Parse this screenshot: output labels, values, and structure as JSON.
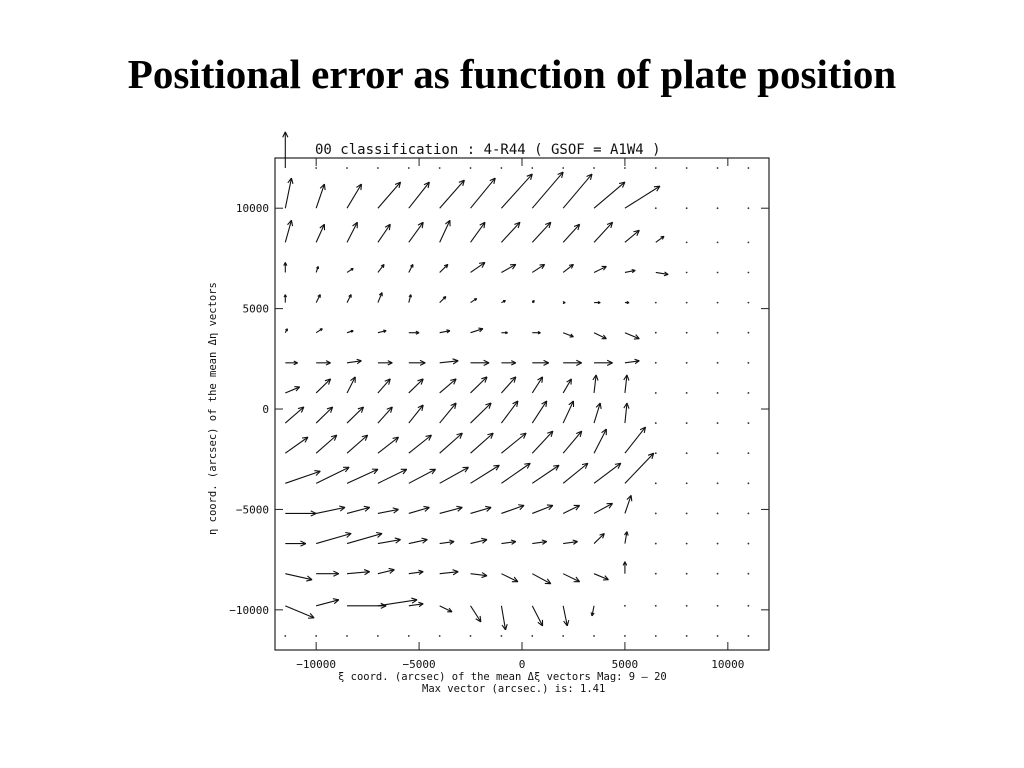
{
  "slide": {
    "title": "Positional error as function of plate position"
  },
  "chart_data": {
    "type": "scatter",
    "subtype": "vector-field",
    "plot_title": "00 classification :   4-R44   ( GSOF = A1W4 )",
    "xlabel": "ξ coord. (arcsec) of the mean Δξ vectors Mag:    9 –   20",
    "xlabel_line2": "Max vector (arcsec.) is:    1.41",
    "ylabel": "η coord. (arcsec) of the mean Δη vectors",
    "xlim": [
      -12000,
      12000
    ],
    "ylim": [
      -12000,
      12500
    ],
    "xticks": [
      -10000,
      -5000,
      0,
      5000,
      10000
    ],
    "xtick_labels": [
      "−10000",
      "−5000",
      "0",
      "5000",
      "10000"
    ],
    "yticks": [
      10000,
      5000,
      0,
      -5000,
      -10000
    ],
    "ytick_labels": [
      "10000",
      "5000",
      "0",
      "−5000",
      "−10000"
    ],
    "grid_x": [
      -11500,
      -10000,
      -8500,
      -7000,
      -5500,
      -4000,
      -2500,
      -1000,
      500,
      2000,
      3500,
      5000,
      6500,
      8000,
      9500,
      11000
    ],
    "grid_y": [
      12000,
      10000,
      8300,
      6800,
      5300,
      3800,
      2300,
      800,
      -700,
      -2200,
      -3700,
      -5200,
      -6700,
      -8200,
      -9800,
      -11300
    ],
    "max_vector_arcsec": 1.41,
    "vectors": [
      {
        "x": -11500,
        "y": 12000,
        "dx": 0,
        "dy": 1800
      },
      {
        "x": -11500,
        "y": 10000,
        "dx": 300,
        "dy": 1500
      },
      {
        "x": -10000,
        "y": 10000,
        "dx": 400,
        "dy": 1200
      },
      {
        "x": -8500,
        "y": 10000,
        "dx": 700,
        "dy": 1200
      },
      {
        "x": -7000,
        "y": 10000,
        "dx": 1100,
        "dy": 1300
      },
      {
        "x": -5500,
        "y": 10000,
        "dx": 1000,
        "dy": 1300
      },
      {
        "x": -4000,
        "y": 10000,
        "dx": 1200,
        "dy": 1400
      },
      {
        "x": -2500,
        "y": 10000,
        "dx": 1200,
        "dy": 1500
      },
      {
        "x": -1000,
        "y": 10000,
        "dx": 1500,
        "dy": 1700
      },
      {
        "x": 500,
        "y": 10000,
        "dx": 1500,
        "dy": 1800
      },
      {
        "x": 2000,
        "y": 10000,
        "dx": 1400,
        "dy": 1700
      },
      {
        "x": 3500,
        "y": 10000,
        "dx": 1500,
        "dy": 1300
      },
      {
        "x": 5000,
        "y": 10000,
        "dx": 1700,
        "dy": 1100
      },
      {
        "x": -11500,
        "y": 8300,
        "dx": 300,
        "dy": 1100
      },
      {
        "x": -10000,
        "y": 8300,
        "dx": 400,
        "dy": 900
      },
      {
        "x": -8500,
        "y": 8300,
        "dx": 500,
        "dy": 1000
      },
      {
        "x": -7000,
        "y": 8300,
        "dx": 600,
        "dy": 900
      },
      {
        "x": -5500,
        "y": 8300,
        "dx": 700,
        "dy": 1000
      },
      {
        "x": -4000,
        "y": 8300,
        "dx": 500,
        "dy": 1100
      },
      {
        "x": -2500,
        "y": 8300,
        "dx": 700,
        "dy": 1000
      },
      {
        "x": -1000,
        "y": 8300,
        "dx": 900,
        "dy": 1000
      },
      {
        "x": 500,
        "y": 8300,
        "dx": 900,
        "dy": 1000
      },
      {
        "x": 2000,
        "y": 8300,
        "dx": 800,
        "dy": 900
      },
      {
        "x": 3500,
        "y": 8300,
        "dx": 900,
        "dy": 1000
      },
      {
        "x": 5000,
        "y": 8300,
        "dx": 700,
        "dy": 600
      },
      {
        "x": 6500,
        "y": 8300,
        "dx": 400,
        "dy": 300
      },
      {
        "x": -11500,
        "y": 6800,
        "dx": 0,
        "dy": 500
      },
      {
        "x": -10000,
        "y": 6800,
        "dx": 100,
        "dy": 300
      },
      {
        "x": -8500,
        "y": 6800,
        "dx": 300,
        "dy": 200
      },
      {
        "x": -7000,
        "y": 6800,
        "dx": 300,
        "dy": 400
      },
      {
        "x": -5500,
        "y": 6800,
        "dx": 200,
        "dy": 400
      },
      {
        "x": -4000,
        "y": 6800,
        "dx": 400,
        "dy": 400
      },
      {
        "x": -2500,
        "y": 6800,
        "dx": 700,
        "dy": 500
      },
      {
        "x": -1000,
        "y": 6800,
        "dx": 700,
        "dy": 400
      },
      {
        "x": 500,
        "y": 6800,
        "dx": 600,
        "dy": 400
      },
      {
        "x": 2000,
        "y": 6800,
        "dx": 500,
        "dy": 400
      },
      {
        "x": 3500,
        "y": 6800,
        "dx": 600,
        "dy": 300
      },
      {
        "x": 5000,
        "y": 6800,
        "dx": 500,
        "dy": 100
      },
      {
        "x": 6500,
        "y": 6800,
        "dx": 600,
        "dy": -100
      },
      {
        "x": -11500,
        "y": 5300,
        "dx": 0,
        "dy": 400
      },
      {
        "x": -10000,
        "y": 5300,
        "dx": 200,
        "dy": 400
      },
      {
        "x": -8500,
        "y": 5300,
        "dx": 200,
        "dy": 400
      },
      {
        "x": -7000,
        "y": 5300,
        "dx": 200,
        "dy": 500
      },
      {
        "x": -5500,
        "y": 5300,
        "dx": 100,
        "dy": 400
      },
      {
        "x": -4000,
        "y": 5300,
        "dx": 300,
        "dy": 300
      },
      {
        "x": -2500,
        "y": 5300,
        "dx": 300,
        "dy": 200
      },
      {
        "x": -1000,
        "y": 5300,
        "dx": 200,
        "dy": 100
      },
      {
        "x": 500,
        "y": 5300,
        "dx": 100,
        "dy": 100
      },
      {
        "x": 2000,
        "y": 5300,
        "dx": 100,
        "dy": 0
      },
      {
        "x": 3500,
        "y": 5300,
        "dx": 300,
        "dy": 0
      },
      {
        "x": 5000,
        "y": 5300,
        "dx": 200,
        "dy": 0
      },
      {
        "x": -11500,
        "y": 3800,
        "dx": 100,
        "dy": 200
      },
      {
        "x": -10000,
        "y": 3800,
        "dx": 300,
        "dy": 200
      },
      {
        "x": -8500,
        "y": 3800,
        "dx": 300,
        "dy": 100
      },
      {
        "x": -7000,
        "y": 3800,
        "dx": 400,
        "dy": 100
      },
      {
        "x": -5500,
        "y": 3800,
        "dx": 500,
        "dy": 0
      },
      {
        "x": -4000,
        "y": 3800,
        "dx": 500,
        "dy": 100
      },
      {
        "x": -2500,
        "y": 3800,
        "dx": 600,
        "dy": 200
      },
      {
        "x": -1000,
        "y": 3800,
        "dx": 300,
        "dy": 0
      },
      {
        "x": 500,
        "y": 3800,
        "dx": 400,
        "dy": 0
      },
      {
        "x": 2000,
        "y": 3800,
        "dx": 500,
        "dy": -200
      },
      {
        "x": 3500,
        "y": 3800,
        "dx": 600,
        "dy": -300
      },
      {
        "x": 5000,
        "y": 3800,
        "dx": 700,
        "dy": -300
      },
      {
        "x": -11500,
        "y": 2300,
        "dx": 600,
        "dy": 0
      },
      {
        "x": -10000,
        "y": 2300,
        "dx": 700,
        "dy": 0
      },
      {
        "x": -8500,
        "y": 2300,
        "dx": 700,
        "dy": 100
      },
      {
        "x": -7000,
        "y": 2300,
        "dx": 700,
        "dy": 0
      },
      {
        "x": -5500,
        "y": 2300,
        "dx": 800,
        "dy": 0
      },
      {
        "x": -4000,
        "y": 2300,
        "dx": 900,
        "dy": 100
      },
      {
        "x": -2500,
        "y": 2300,
        "dx": 900,
        "dy": 0
      },
      {
        "x": -1000,
        "y": 2300,
        "dx": 700,
        "dy": 0
      },
      {
        "x": 500,
        "y": 2300,
        "dx": 800,
        "dy": 0
      },
      {
        "x": 2000,
        "y": 2300,
        "dx": 900,
        "dy": 0
      },
      {
        "x": 3500,
        "y": 2300,
        "dx": 900,
        "dy": 0
      },
      {
        "x": 5000,
        "y": 2300,
        "dx": 700,
        "dy": 100
      },
      {
        "x": -11500,
        "y": 800,
        "dx": 700,
        "dy": 300
      },
      {
        "x": -10000,
        "y": 800,
        "dx": 700,
        "dy": 700
      },
      {
        "x": -8500,
        "y": 800,
        "dx": 400,
        "dy": 800
      },
      {
        "x": -7000,
        "y": 800,
        "dx": 600,
        "dy": 700
      },
      {
        "x": -5500,
        "y": 800,
        "dx": 700,
        "dy": 700
      },
      {
        "x": -4000,
        "y": 800,
        "dx": 800,
        "dy": 700
      },
      {
        "x": -2500,
        "y": 800,
        "dx": 800,
        "dy": 800
      },
      {
        "x": -1000,
        "y": 800,
        "dx": 700,
        "dy": 800
      },
      {
        "x": 500,
        "y": 800,
        "dx": 500,
        "dy": 800
      },
      {
        "x": 2000,
        "y": 800,
        "dx": 400,
        "dy": 700
      },
      {
        "x": 3500,
        "y": 800,
        "dx": 100,
        "dy": 900
      },
      {
        "x": 5000,
        "y": 800,
        "dx": 100,
        "dy": 900
      },
      {
        "x": -11500,
        "y": -700,
        "dx": 900,
        "dy": 800
      },
      {
        "x": -10000,
        "y": -700,
        "dx": 800,
        "dy": 800
      },
      {
        "x": -8500,
        "y": -700,
        "dx": 800,
        "dy": 800
      },
      {
        "x": -7000,
        "y": -700,
        "dx": 700,
        "dy": 800
      },
      {
        "x": -5500,
        "y": -700,
        "dx": 700,
        "dy": 900
      },
      {
        "x": -4000,
        "y": -700,
        "dx": 800,
        "dy": 1000
      },
      {
        "x": -2500,
        "y": -700,
        "dx": 1000,
        "dy": 1000
      },
      {
        "x": -1000,
        "y": -700,
        "dx": 800,
        "dy": 1100
      },
      {
        "x": 500,
        "y": -700,
        "dx": 700,
        "dy": 1100
      },
      {
        "x": 2000,
        "y": -700,
        "dx": 500,
        "dy": 1100
      },
      {
        "x": 3500,
        "y": -700,
        "dx": 300,
        "dy": 1000
      },
      {
        "x": 5000,
        "y": -700,
        "dx": 100,
        "dy": 1000
      },
      {
        "x": -11500,
        "y": -2200,
        "dx": 1100,
        "dy": 800
      },
      {
        "x": -10000,
        "y": -2200,
        "dx": 1000,
        "dy": 900
      },
      {
        "x": -8500,
        "y": -2200,
        "dx": 1000,
        "dy": 900
      },
      {
        "x": -7000,
        "y": -2200,
        "dx": 1000,
        "dy": 800
      },
      {
        "x": -5500,
        "y": -2200,
        "dx": 1100,
        "dy": 900
      },
      {
        "x": -4000,
        "y": -2200,
        "dx": 1100,
        "dy": 1000
      },
      {
        "x": -2500,
        "y": -2200,
        "dx": 1100,
        "dy": 1000
      },
      {
        "x": -1000,
        "y": -2200,
        "dx": 1200,
        "dy": 1000
      },
      {
        "x": 500,
        "y": -2200,
        "dx": 1000,
        "dy": 1100
      },
      {
        "x": 2000,
        "y": -2200,
        "dx": 900,
        "dy": 1100
      },
      {
        "x": 3500,
        "y": -2200,
        "dx": 600,
        "dy": 1200
      },
      {
        "x": 5000,
        "y": -2200,
        "dx": 1000,
        "dy": 1300
      },
      {
        "x": -11500,
        "y": -3700,
        "dx": 1700,
        "dy": 600
      },
      {
        "x": -10000,
        "y": -3700,
        "dx": 1600,
        "dy": 800
      },
      {
        "x": -8500,
        "y": -3700,
        "dx": 1500,
        "dy": 700
      },
      {
        "x": -7000,
        "y": -3700,
        "dx": 1400,
        "dy": 700
      },
      {
        "x": -5500,
        "y": -3700,
        "dx": 1300,
        "dy": 700
      },
      {
        "x": -4000,
        "y": -3700,
        "dx": 1400,
        "dy": 800
      },
      {
        "x": -2500,
        "y": -3700,
        "dx": 1400,
        "dy": 900
      },
      {
        "x": -1000,
        "y": -3700,
        "dx": 1400,
        "dy": 1000
      },
      {
        "x": 500,
        "y": -3700,
        "dx": 1300,
        "dy": 900
      },
      {
        "x": 2000,
        "y": -3700,
        "dx": 1200,
        "dy": 1000
      },
      {
        "x": 3500,
        "y": -3700,
        "dx": 1300,
        "dy": 1000
      },
      {
        "x": 5000,
        "y": -3700,
        "dx": 1400,
        "dy": 1500
      },
      {
        "x": -11500,
        "y": -5200,
        "dx": 1500,
        "dy": 0
      },
      {
        "x": -10000,
        "y": -5200,
        "dx": 1400,
        "dy": 300
      },
      {
        "x": -8500,
        "y": -5200,
        "dx": 1100,
        "dy": 300
      },
      {
        "x": -7000,
        "y": -5200,
        "dx": 1000,
        "dy": 200
      },
      {
        "x": -5500,
        "y": -5200,
        "dx": 1000,
        "dy": 300
      },
      {
        "x": -4000,
        "y": -5200,
        "dx": 1100,
        "dy": 300
      },
      {
        "x": -2500,
        "y": -5200,
        "dx": 1000,
        "dy": 300
      },
      {
        "x": -1000,
        "y": -5200,
        "dx": 1100,
        "dy": 400
      },
      {
        "x": 500,
        "y": -5200,
        "dx": 1000,
        "dy": 400
      },
      {
        "x": 2000,
        "y": -5200,
        "dx": 800,
        "dy": 400
      },
      {
        "x": 3500,
        "y": -5200,
        "dx": 900,
        "dy": 500
      },
      {
        "x": 5000,
        "y": -5200,
        "dx": 300,
        "dy": 900
      },
      {
        "x": -11500,
        "y": -6700,
        "dx": 1000,
        "dy": 0
      },
      {
        "x": -10000,
        "y": -6700,
        "dx": 1700,
        "dy": 500
      },
      {
        "x": -8500,
        "y": -6700,
        "dx": 1700,
        "dy": 500
      },
      {
        "x": -7000,
        "y": -6700,
        "dx": 1100,
        "dy": 200
      },
      {
        "x": -5500,
        "y": -6700,
        "dx": 900,
        "dy": 200
      },
      {
        "x": -4000,
        "y": -6700,
        "dx": 700,
        "dy": 100
      },
      {
        "x": -2500,
        "y": -6700,
        "dx": 800,
        "dy": 200
      },
      {
        "x": -1000,
        "y": -6700,
        "dx": 700,
        "dy": 100
      },
      {
        "x": 500,
        "y": -6700,
        "dx": 700,
        "dy": 100
      },
      {
        "x": 2000,
        "y": -6700,
        "dx": 700,
        "dy": 100
      },
      {
        "x": 3500,
        "y": -6700,
        "dx": 500,
        "dy": 500
      },
      {
        "x": 5000,
        "y": -6700,
        "dx": 100,
        "dy": 600
      },
      {
        "x": -11500,
        "y": -8200,
        "dx": 1300,
        "dy": -300
      },
      {
        "x": -10000,
        "y": -8200,
        "dx": 1100,
        "dy": 0
      },
      {
        "x": -8500,
        "y": -8200,
        "dx": 1100,
        "dy": 100
      },
      {
        "x": -7000,
        "y": -8200,
        "dx": 800,
        "dy": 200
      },
      {
        "x": -5500,
        "y": -8200,
        "dx": 700,
        "dy": 100
      },
      {
        "x": -4000,
        "y": -8200,
        "dx": 900,
        "dy": 100
      },
      {
        "x": -2500,
        "y": -8200,
        "dx": 800,
        "dy": -100
      },
      {
        "x": -1000,
        "y": -8200,
        "dx": 800,
        "dy": -400
      },
      {
        "x": 500,
        "y": -8200,
        "dx": 900,
        "dy": -500
      },
      {
        "x": 2000,
        "y": -8200,
        "dx": 800,
        "dy": -400
      },
      {
        "x": 3500,
        "y": -8200,
        "dx": 700,
        "dy": -300
      },
      {
        "x": 5000,
        "y": -8200,
        "dx": 0,
        "dy": 600
      },
      {
        "x": -11500,
        "y": -9800,
        "dx": 1400,
        "dy": -600
      },
      {
        "x": -10000,
        "y": -9800,
        "dx": 1100,
        "dy": 300
      },
      {
        "x": -8500,
        "y": -9800,
        "dx": 1900,
        "dy": 0
      },
      {
        "x": -7000,
        "y": -9800,
        "dx": 1900,
        "dy": 300
      },
      {
        "x": -5500,
        "y": -9800,
        "dx": 700,
        "dy": 100
      },
      {
        "x": -4000,
        "y": -9800,
        "dx": 600,
        "dy": -300
      },
      {
        "x": -2500,
        "y": -9800,
        "dx": 500,
        "dy": -800
      },
      {
        "x": -1000,
        "y": -9800,
        "dx": 200,
        "dy": -1200
      },
      {
        "x": 500,
        "y": -9800,
        "dx": 500,
        "dy": -1000
      },
      {
        "x": 2000,
        "y": -9800,
        "dx": 200,
        "dy": -1000
      },
      {
        "x": 3500,
        "y": -9800,
        "dx": -100,
        "dy": -500
      }
    ]
  }
}
